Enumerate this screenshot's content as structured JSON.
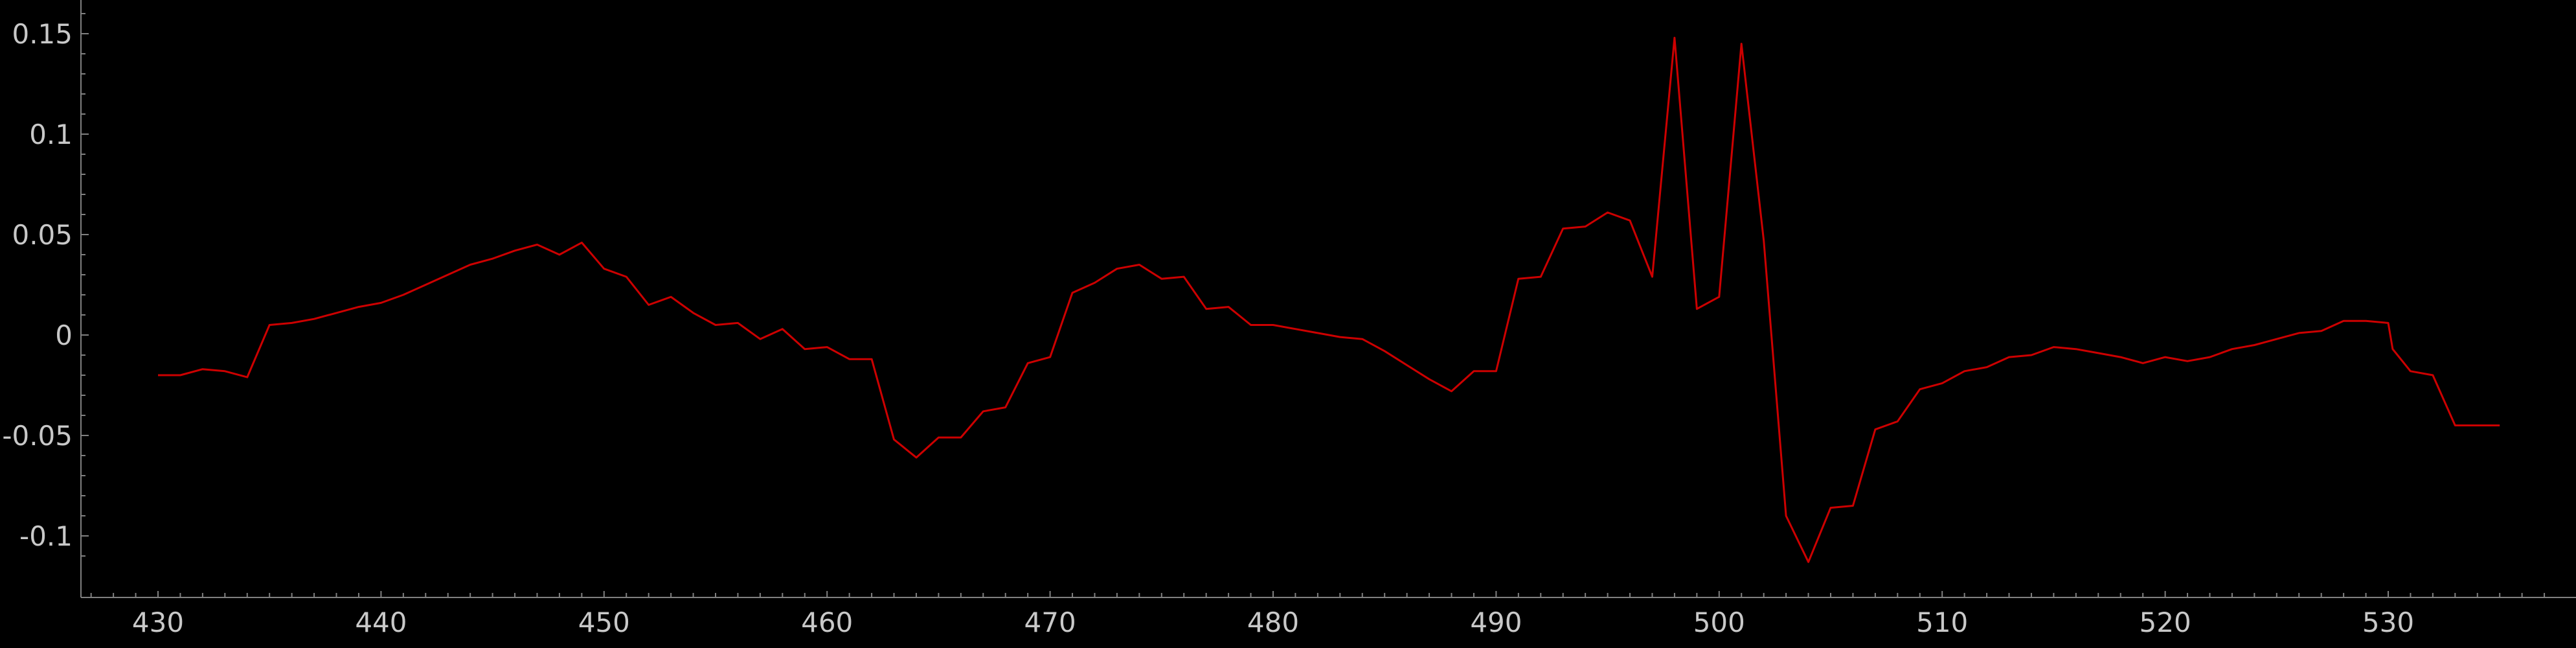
{
  "chart_data": {
    "type": "line",
    "title": "",
    "xlabel": "",
    "ylabel": "",
    "xlim": [
      427,
      537
    ],
    "ylim": [
      -0.115,
      0.165
    ],
    "x_ticks": [
      430,
      440,
      450,
      460,
      470,
      480,
      490,
      500,
      510,
      520,
      530
    ],
    "x_tick_labels": [
      "430",
      "440",
      "450",
      "460",
      "470",
      "480",
      "490",
      "500",
      "510",
      "520",
      "530"
    ],
    "y_ticks": [
      -0.1,
      -0.05,
      0,
      0.05,
      0.1,
      0.15
    ],
    "y_tick_labels": [
      "-0.1",
      "-0.05",
      "0",
      "0.05",
      "0.1",
      "0.15"
    ],
    "grid": false,
    "legend": "none",
    "background_color": "#000000",
    "axis_color": "#808080",
    "tick_label_color": "#c8c8c8",
    "series": [
      {
        "color": "#cc0000",
        "x": [
          430,
          431,
          432,
          433,
          434,
          435,
          436,
          437,
          438,
          439,
          440,
          441,
          442,
          443,
          444,
          445,
          446,
          447,
          448,
          449,
          450,
          451,
          452,
          453,
          454,
          455,
          456,
          457,
          458,
          459,
          460,
          461,
          462,
          463,
          464,
          465,
          466,
          467,
          468,
          469,
          470,
          471,
          472,
          473,
          474,
          475,
          476,
          477,
          478,
          479,
          480,
          481,
          482,
          483,
          484,
          485,
          486,
          487,
          488,
          489,
          490,
          491,
          492,
          493,
          494,
          495,
          496,
          497,
          498,
          499,
          500,
          501,
          502,
          503,
          504,
          505,
          506,
          507,
          508,
          509,
          510,
          511,
          512,
          513,
          514,
          515,
          516,
          517,
          518,
          519,
          520,
          521,
          522,
          523,
          524,
          525,
          526,
          527,
          528,
          529,
          530,
          530.2,
          531,
          532,
          533,
          534,
          535
        ],
        "y": [
          -0.02,
          -0.02,
          -0.017,
          -0.018,
          -0.021,
          0.005,
          0.006,
          0.008,
          0.011,
          0.014,
          0.016,
          0.02,
          0.025,
          0.03,
          0.035,
          0.038,
          0.042,
          0.045,
          0.04,
          0.046,
          0.033,
          0.029,
          0.015,
          0.019,
          0.011,
          0.005,
          0.006,
          -0.002,
          0.003,
          -0.007,
          -0.006,
          -0.012,
          -0.012,
          -0.052,
          -0.061,
          -0.051,
          -0.051,
          -0.038,
          -0.036,
          -0.014,
          -0.011,
          0.021,
          0.026,
          0.033,
          0.035,
          0.028,
          0.029,
          0.013,
          0.014,
          0.005,
          0.005,
          0.003,
          0.001,
          -0.001,
          -0.002,
          -0.008,
          -0.015,
          -0.022,
          -0.028,
          -0.018,
          -0.018,
          0.028,
          0.029,
          0.053,
          0.054,
          0.061,
          0.057,
          0.029,
          0.148,
          0.013,
          0.019,
          0.145,
          0.047,
          -0.09,
          -0.113,
          -0.086,
          -0.085,
          -0.047,
          -0.043,
          -0.027,
          -0.024,
          -0.018,
          -0.016,
          -0.011,
          -0.01,
          -0.006,
          -0.007,
          -0.009,
          -0.011,
          -0.014,
          -0.011,
          -0.013,
          -0.011,
          -0.007,
          -0.005,
          -0.002,
          0.001,
          0.002,
          0.007,
          0.007,
          0.006,
          -0.007,
          -0.018,
          -0.02,
          -0.045,
          -0.045,
          -0.045
        ]
      }
    ]
  }
}
